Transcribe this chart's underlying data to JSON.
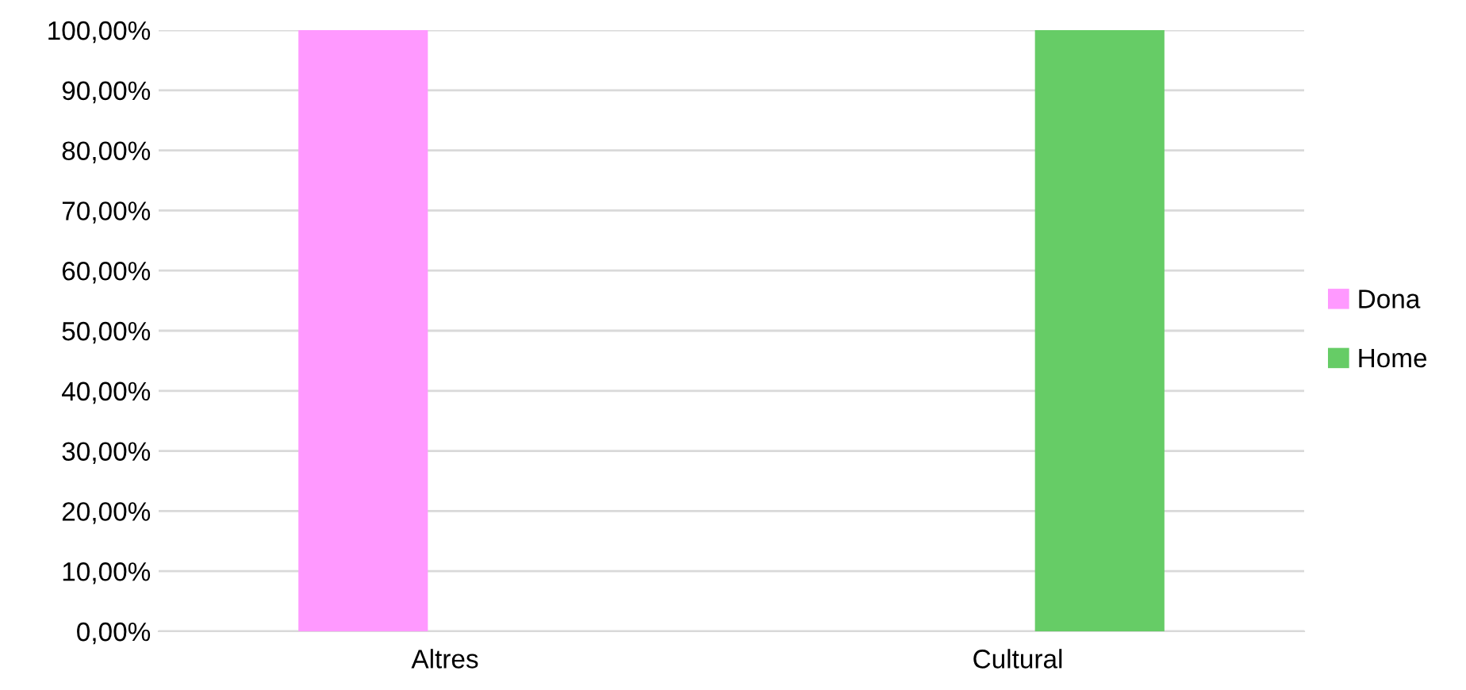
{
  "chart_data": {
    "type": "bar",
    "categories": [
      "Altres",
      "Cultural"
    ],
    "series": [
      {
        "name": "Dona",
        "color": "#ff99ff",
        "values": [
          100,
          0
        ]
      },
      {
        "name": "Home",
        "color": "#66cc66",
        "values": [
          0,
          100
        ]
      }
    ],
    "ylim": [
      0,
      100
    ],
    "yticks": [
      {
        "value": 0,
        "label": "0,00%"
      },
      {
        "value": 10,
        "label": "10,00%"
      },
      {
        "value": 20,
        "label": "20,00%"
      },
      {
        "value": 30,
        "label": "30,00%"
      },
      {
        "value": 40,
        "label": "40,00%"
      },
      {
        "value": 50,
        "label": "50,00%"
      },
      {
        "value": 60,
        "label": "60,00%"
      },
      {
        "value": 70,
        "label": "70,00%"
      },
      {
        "value": 80,
        "label": "80,00%"
      },
      {
        "value": 90,
        "label": "90,00%"
      },
      {
        "value": 100,
        "label": "100,00%"
      }
    ],
    "grid": "y",
    "legend": "right"
  }
}
